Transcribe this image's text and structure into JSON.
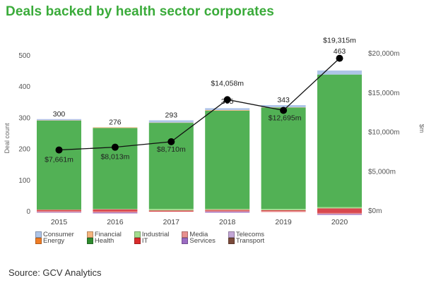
{
  "title": "Deals backed by health sector corporates",
  "source": "Source: GCV Analytics",
  "chart_data": {
    "type": "bar",
    "title": "Deals backed by health sector corporates",
    "categories": [
      "2015",
      "2016",
      "2017",
      "2018",
      "2019",
      "2020"
    ],
    "xlabel": "",
    "ylabel": "Deal count",
    "y2label": "$m",
    "ylim": [
      0,
      500
    ],
    "y2lim": [
      0,
      20000
    ],
    "yticks": [
      "0",
      "100",
      "200",
      "300",
      "400",
      "500"
    ],
    "y2ticks": [
      "$0m",
      "$5,000m",
      "$10,000m",
      "$15,000m",
      "$20,000m"
    ],
    "grid": false,
    "legend_position": "bottom-left",
    "series": [
      {
        "name": "Transport",
        "color": "#7b4a3a",
        "values": [
          0,
          0,
          0,
          0,
          0,
          0
        ]
      },
      {
        "name": "Telecoms",
        "color": "#c3a6d6",
        "values": [
          0,
          0,
          0,
          0,
          0,
          0
        ]
      },
      {
        "name": "Services",
        "color": "#9b6bc2",
        "values": [
          2,
          3,
          0,
          3,
          0,
          3
        ]
      },
      {
        "name": "Media",
        "color": "#e8908f",
        "values": [
          3,
          3,
          0,
          3,
          3,
          3
        ]
      },
      {
        "name": "IT",
        "color": "#d9484f",
        "values": [
          4,
          7,
          4,
          3,
          3,
          15
        ]
      },
      {
        "name": "Industrial",
        "color": "#a3dc8e",
        "values": [
          1,
          1,
          5,
          3,
          4,
          4
        ]
      },
      {
        "name": "Health",
        "color": "#52b155",
        "values": [
          285,
          260,
          276,
          315,
          325,
          425
        ]
      },
      {
        "name": "Energy",
        "color": "#ef7c24",
        "values": [
          0,
          0,
          0,
          0,
          0,
          0
        ]
      },
      {
        "name": "Financial",
        "color": "#f5b57e",
        "values": [
          1,
          2,
          1,
          2,
          1,
          0
        ]
      },
      {
        "name": "Consumer",
        "color": "#aec5e8",
        "values": [
          4,
          0,
          7,
          6,
          7,
          13
        ]
      }
    ],
    "totals": [
      300,
      276,
      293,
      335,
      343,
      463
    ],
    "line_series": {
      "name": "Total investment ($m)",
      "axis": "right",
      "values": [
        7661,
        8013,
        8710,
        14058,
        12695,
        19315
      ],
      "labels": [
        "$7,661m",
        "$8,013m",
        "$8,710m",
        "$14,058m",
        "$12,695m",
        "$19,315m"
      ]
    }
  },
  "legend": [
    {
      "name": "Consumer",
      "color": "#aec5e8"
    },
    {
      "name": "Financial",
      "color": "#f5b57e"
    },
    {
      "name": "Industrial",
      "color": "#a3dc8e"
    },
    {
      "name": "Media",
      "color": "#e8908f"
    },
    {
      "name": "Telecoms",
      "color": "#c3a6d6"
    },
    {
      "name": "Energy",
      "color": "#ef7c24"
    },
    {
      "name": "Health",
      "color": "#2e8a2e"
    },
    {
      "name": "IT",
      "color": "#d92b2b"
    },
    {
      "name": "Services",
      "color": "#9b6bc2"
    },
    {
      "name": "Transport",
      "color": "#7b4a3a"
    }
  ]
}
